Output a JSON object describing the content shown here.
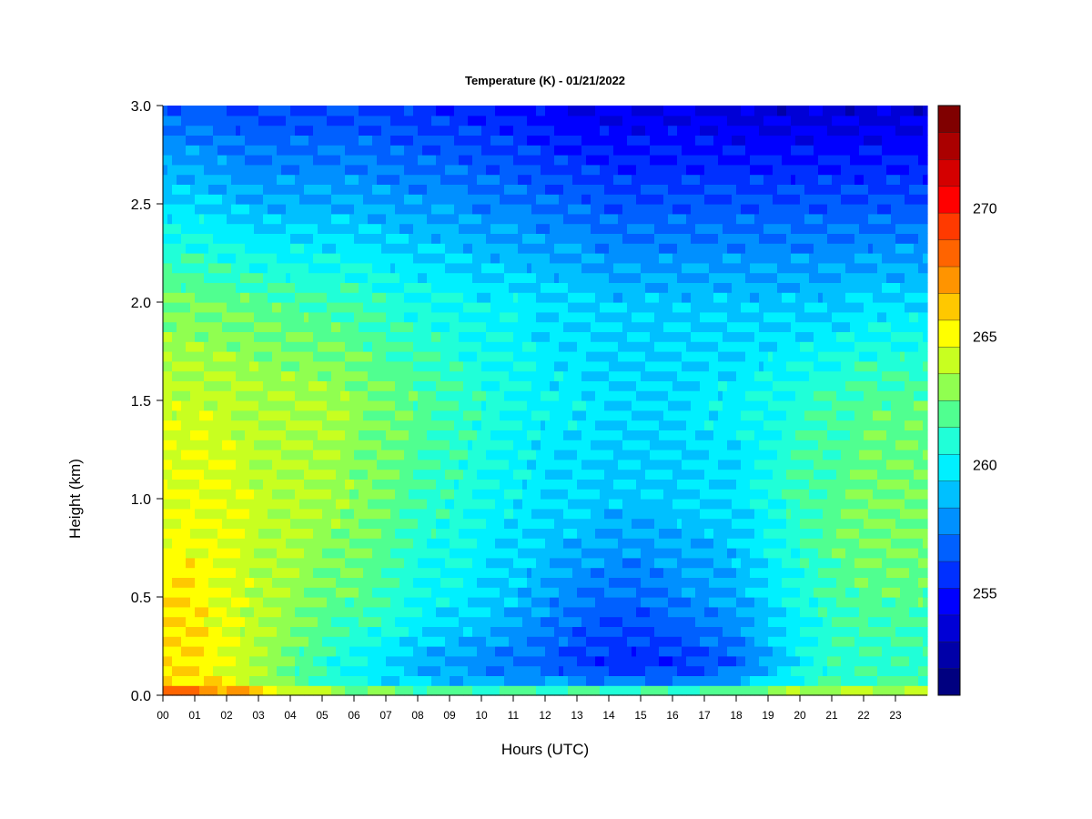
{
  "chart_data": {
    "type": "heatmap",
    "title": "Temperature (K) - 01/21/2022",
    "xlabel": "Hours (UTC)",
    "ylabel": "Height (km)",
    "xlim": [
      0,
      24
    ],
    "ylim": [
      0.0,
      3.0
    ],
    "x_ticks": [
      "00",
      "01",
      "02",
      "03",
      "04",
      "05",
      "06",
      "07",
      "08",
      "09",
      "10",
      "11",
      "12",
      "13",
      "14",
      "15",
      "16",
      "17",
      "18",
      "19",
      "20",
      "21",
      "22",
      "23"
    ],
    "y_ticks": [
      "0.0",
      "0.5",
      "1.0",
      "1.5",
      "2.0",
      "2.5",
      "3.0"
    ],
    "colorbar": {
      "range": [
        251,
        274
      ],
      "ticks": [
        "255",
        "260",
        "265",
        "270"
      ],
      "colors": [
        "#000080",
        "#0000a8",
        "#0000d6",
        "#0000ff",
        "#0030ff",
        "#0060ff",
        "#0090ff",
        "#00c0ff",
        "#00f0ff",
        "#20ffd8",
        "#50ff90",
        "#90ff50",
        "#c8ff20",
        "#ffff00",
        "#ffc800",
        "#ff9400",
        "#ff6400",
        "#ff3a00",
        "#ff0000",
        "#d40000",
        "#aa0000",
        "#800000"
      ]
    },
    "hours": [
      0,
      1,
      2,
      3,
      4,
      5,
      6,
      7,
      8,
      9,
      10,
      11,
      12,
      13,
      14,
      15,
      16,
      17,
      18,
      19,
      20,
      21,
      22,
      23,
      24
    ],
    "heights_km": [
      0.0,
      0.05,
      0.15,
      0.3,
      0.5,
      0.75,
      1.0,
      1.5,
      2.0,
      2.5,
      3.0
    ],
    "values_K": [
      [
        270.5,
        266.0,
        265.5,
        265.5,
        265.5,
        265.0,
        264.8,
        264.0,
        262.5,
        259.5,
        256.5
      ],
      [
        270.0,
        266.0,
        265.5,
        265.5,
        265.5,
        265.0,
        264.8,
        264.0,
        262.5,
        259.5,
        256.5
      ],
      [
        269.0,
        265.0,
        264.5,
        264.5,
        264.5,
        264.5,
        264.5,
        264.0,
        262.3,
        259.0,
        256.2
      ],
      [
        267.5,
        264.0,
        263.5,
        263.5,
        263.8,
        264.0,
        264.0,
        263.5,
        262.0,
        258.5,
        256.0
      ],
      [
        266.5,
        262.5,
        262.0,
        262.5,
        263.0,
        263.5,
        263.8,
        263.5,
        261.8,
        258.5,
        256.0
      ],
      [
        265.5,
        261.5,
        261.0,
        262.0,
        262.5,
        263.0,
        263.5,
        263.5,
        261.5,
        258.5,
        256.0
      ],
      [
        265.0,
        260.5,
        260.0,
        261.0,
        262.0,
        262.5,
        263.0,
        263.0,
        261.5,
        258.5,
        256.0
      ],
      [
        264.5,
        260.0,
        259.5,
        260.5,
        261.5,
        262.0,
        262.5,
        262.5,
        261.0,
        258.2,
        255.8
      ],
      [
        264.5,
        259.5,
        258.5,
        259.5,
        260.5,
        261.0,
        261.5,
        262.0,
        260.5,
        258.0,
        255.5
      ],
      [
        264.5,
        259.0,
        258.0,
        259.0,
        260.0,
        260.5,
        261.0,
        261.5,
        260.5,
        258.0,
        255.5
      ],
      [
        264.5,
        259.0,
        257.5,
        258.5,
        259.5,
        260.0,
        260.5,
        261.0,
        260.0,
        257.5,
        255.2
      ],
      [
        264.5,
        258.5,
        257.0,
        258.0,
        259.0,
        259.5,
        260.0,
        260.5,
        260.0,
        257.5,
        255.0
      ],
      [
        264.5,
        258.5,
        256.5,
        257.5,
        258.0,
        259.0,
        259.5,
        260.0,
        259.5,
        257.0,
        254.5
      ],
      [
        264.5,
        258.5,
        256.0,
        256.5,
        257.5,
        258.5,
        259.5,
        260.0,
        259.5,
        257.0,
        254.0
      ],
      [
        264.5,
        258.0,
        255.5,
        256.0,
        257.0,
        258.0,
        259.0,
        259.5,
        259.0,
        256.5,
        254.0
      ],
      [
        264.5,
        258.0,
        255.5,
        256.0,
        257.0,
        258.0,
        259.0,
        259.5,
        259.0,
        256.5,
        254.0
      ],
      [
        264.5,
        258.0,
        255.5,
        256.5,
        257.5,
        258.5,
        259.0,
        259.5,
        259.0,
        256.5,
        254.0
      ],
      [
        265.0,
        258.5,
        256.0,
        257.0,
        258.0,
        258.5,
        259.5,
        260.0,
        259.0,
        256.5,
        254.0
      ],
      [
        265.0,
        259.0,
        256.5,
        257.5,
        258.5,
        259.0,
        259.5,
        260.0,
        259.0,
        256.5,
        253.5
      ],
      [
        265.5,
        260.0,
        258.5,
        259.0,
        259.5,
        260.0,
        260.5,
        260.5,
        259.0,
        256.5,
        253.5
      ],
      [
        265.5,
        261.0,
        260.0,
        260.0,
        260.5,
        261.0,
        261.5,
        261.0,
        259.0,
        256.5,
        253.5
      ],
      [
        265.5,
        261.5,
        261.0,
        261.0,
        261.5,
        262.0,
        262.0,
        261.5,
        259.0,
        256.5,
        253.5
      ],
      [
        265.5,
        261.5,
        261.0,
        261.5,
        262.0,
        262.5,
        262.5,
        262.0,
        259.5,
        256.5,
        253.5
      ],
      [
        265.5,
        262.0,
        261.0,
        261.5,
        262.0,
        262.5,
        262.5,
        262.0,
        259.5,
        256.5,
        253.5
      ],
      [
        265.5,
        262.0,
        261.0,
        261.5,
        262.0,
        262.5,
        262.5,
        262.0,
        259.5,
        256.5,
        253.5
      ]
    ],
    "grid": false,
    "legend": "colorbar-right"
  }
}
